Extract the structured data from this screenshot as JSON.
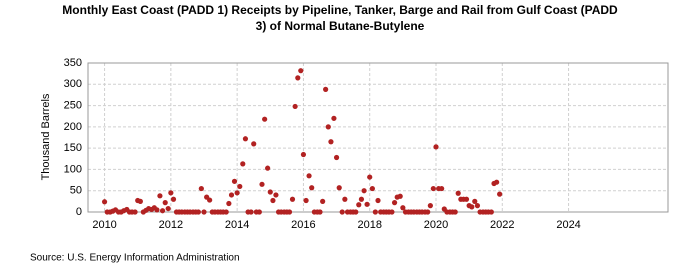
{
  "chart_data": {
    "type": "scatter",
    "title": "Monthly East Coast (PADD 1) Receipts by Pipeline, Tanker, Barge and Rail from Gulf Coast (PADD 3) of Normal Butane-Butylene",
    "y_label": "Thousand Barrels",
    "source": "Source: U.S. Energy Information Administration",
    "color": "#b22222",
    "grid": true,
    "xlim": [
      2009.5,
      2027
    ],
    "xticks": [
      2010,
      2012,
      2014,
      2016,
      2018,
      2020,
      2022,
      2024
    ],
    "ylim": [
      0,
      350
    ],
    "yticks": [
      0,
      50,
      100,
      150,
      200,
      250,
      300,
      350
    ],
    "x": [
      2010.0,
      2010.08,
      2010.17,
      2010.25,
      2010.33,
      2010.42,
      2010.5,
      2010.58,
      2010.67,
      2010.75,
      2010.83,
      2010.92,
      2011.0,
      2011.08,
      2011.17,
      2011.25,
      2011.33,
      2011.42,
      2011.5,
      2011.58,
      2011.67,
      2011.75,
      2011.83,
      2011.92,
      2012.0,
      2012.08,
      2012.17,
      2012.25,
      2012.33,
      2012.42,
      2012.5,
      2012.58,
      2012.67,
      2012.75,
      2012.83,
      2012.92,
      2013.0,
      2013.08,
      2013.17,
      2013.25,
      2013.33,
      2013.42,
      2013.5,
      2013.58,
      2013.67,
      2013.75,
      2013.83,
      2013.92,
      2014.0,
      2014.08,
      2014.17,
      2014.25,
      2014.33,
      2014.42,
      2014.5,
      2014.58,
      2014.67,
      2014.75,
      2014.83,
      2014.92,
      2015.0,
      2015.08,
      2015.17,
      2015.25,
      2015.33,
      2015.42,
      2015.5,
      2015.58,
      2015.67,
      2015.75,
      2015.83,
      2015.92,
      2016.0,
      2016.08,
      2016.17,
      2016.25,
      2016.33,
      2016.42,
      2016.5,
      2016.58,
      2016.67,
      2016.75,
      2016.83,
      2016.92,
      2017.0,
      2017.08,
      2017.17,
      2017.25,
      2017.33,
      2017.42,
      2017.5,
      2017.58,
      2017.67,
      2017.75,
      2017.83,
      2017.92,
      2018.0,
      2018.08,
      2018.17,
      2018.25,
      2018.33,
      2018.42,
      2018.5,
      2018.58,
      2018.67,
      2018.75,
      2018.83,
      2018.92,
      2019.0,
      2019.08,
      2019.17,
      2019.25,
      2019.33,
      2019.42,
      2019.5,
      2019.58,
      2019.67,
      2019.75,
      2019.83,
      2019.92,
      2020.0,
      2020.08,
      2020.17,
      2020.25,
      2020.33,
      2020.42,
      2020.5,
      2020.58,
      2020.67,
      2020.75,
      2020.83,
      2020.92,
      2021.0,
      2021.08,
      2021.17,
      2021.25,
      2021.33,
      2021.42,
      2021.5,
      2021.58,
      2021.67,
      2021.75,
      2021.83,
      2021.92
    ],
    "values": [
      24,
      0,
      0,
      2,
      5,
      0,
      0,
      3,
      6,
      0,
      0,
      0,
      27,
      25,
      0,
      4,
      8,
      6,
      10,
      5,
      38,
      3,
      22,
      8,
      45,
      30,
      0,
      0,
      0,
      0,
      0,
      0,
      0,
      0,
      0,
      55,
      0,
      35,
      28,
      0,
      0,
      0,
      0,
      0,
      0,
      20,
      40,
      72,
      45,
      60,
      113,
      172,
      0,
      0,
      160,
      0,
      0,
      65,
      218,
      103,
      47,
      27,
      40,
      0,
      0,
      0,
      0,
      0,
      30,
      248,
      315,
      332,
      135,
      27,
      85,
      57,
      0,
      0,
      0,
      25,
      288,
      200,
      165,
      220,
      128,
      57,
      0,
      30,
      0,
      0,
      0,
      0,
      17,
      30,
      50,
      18,
      82,
      55,
      0,
      27,
      0,
      0,
      0,
      0,
      0,
      22,
      35,
      37,
      10,
      0,
      0,
      0,
      0,
      0,
      0,
      0,
      0,
      0,
      15,
      55,
      153,
      55,
      55,
      7,
      0,
      0,
      0,
      0,
      44,
      30,
      30,
      30,
      15,
      12,
      25,
      15,
      0,
      0,
      0,
      0,
      0,
      67,
      70,
      42
    ]
  }
}
